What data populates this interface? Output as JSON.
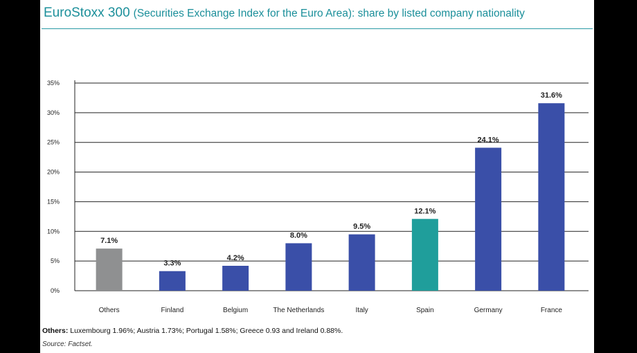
{
  "title_main": "EuroStoxx 300",
  "title_sub": "(Securities Exchange Index for the Euro Area): share by listed company nationality",
  "footnote": {
    "label": "Others:",
    "text": "Luxembourg 1.96%; Austria 1.73%; Portugal 1.58%; Greece 0.93 and Ireland 0.88%."
  },
  "source": "Source: Factset.",
  "chart_data": {
    "type": "bar",
    "title": "EuroStoxx 300 (Securities Exchange Index for the Euro Area): share by listed company nationality",
    "categories": [
      "Others",
      "Finland",
      "Belgium",
      "The Netherlands",
      "Italy",
      "Spain",
      "Germany",
      "France"
    ],
    "values": [
      7.1,
      3.3,
      4.2,
      8.0,
      9.5,
      12.1,
      24.1,
      31.6
    ],
    "value_labels": [
      "7.1%",
      "3.3%",
      "4.2%",
      "8.0%",
      "9.5%",
      "12.1%",
      "24.1%",
      "31.6%"
    ],
    "bar_colors": [
      "#8f9091",
      "#3a4fa8",
      "#3a4fa8",
      "#3a4fa8",
      "#3a4fa8",
      "#1f9e9b",
      "#3a4fa8",
      "#3a4fa8"
    ],
    "ylim": [
      0,
      35
    ],
    "yticks": [
      0,
      5,
      10,
      15,
      20,
      25,
      30,
      35
    ],
    "ytick_labels": [
      "0%",
      "5%",
      "10%",
      "15%",
      "20%",
      "25%",
      "30%",
      "35%"
    ],
    "xlabel": "",
    "ylabel": "",
    "grid": true,
    "legend": "none"
  }
}
